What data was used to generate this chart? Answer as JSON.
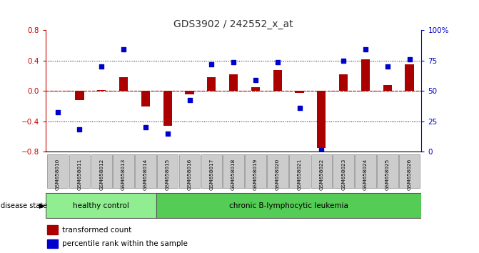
{
  "title": "GDS3902 / 242552_x_at",
  "samples": [
    "GSM658010",
    "GSM658011",
    "GSM658012",
    "GSM658013",
    "GSM658014",
    "GSM658015",
    "GSM658016",
    "GSM658017",
    "GSM658018",
    "GSM658019",
    "GSM658020",
    "GSM658021",
    "GSM658022",
    "GSM658023",
    "GSM658024",
    "GSM658025",
    "GSM658026"
  ],
  "red_values": [
    0.0,
    -0.12,
    0.01,
    0.18,
    -0.2,
    -0.46,
    -0.04,
    0.18,
    0.22,
    0.05,
    0.28,
    -0.02,
    -0.75,
    0.22,
    0.42,
    0.08,
    0.35
  ],
  "blue_values": [
    -0.28,
    -0.5,
    0.32,
    0.55,
    -0.48,
    -0.56,
    -0.12,
    0.35,
    0.38,
    0.15,
    0.38,
    -0.22,
    -0.78,
    0.4,
    0.55,
    0.32,
    0.42
  ],
  "healthy_count": 5,
  "disease_label_healthy": "healthy control",
  "disease_label_leukemia": "chronic B-lymphocytic leukemia",
  "disease_state_label": "disease state",
  "legend_red": "transformed count",
  "legend_blue": "percentile rank within the sample",
  "ylim": [
    -0.8,
    0.8
  ],
  "right_ylim": [
    0,
    100
  ],
  "right_yticks": [
    0,
    25,
    50,
    75,
    100
  ],
  "right_yticklabels": [
    "0",
    "25",
    "50",
    "75",
    "100%"
  ],
  "left_yticks": [
    -0.8,
    -0.4,
    0.0,
    0.4,
    0.8
  ],
  "dotted_lines": [
    -0.4,
    0.0,
    0.4
  ],
  "bar_color": "#aa0000",
  "dot_color": "#0000cc",
  "healthy_bg": "#90ee90",
  "leukemia_bg": "#55cc55",
  "tick_label_bg": "#cccccc",
  "plot_bg": "#ffffff",
  "title_color": "#333333",
  "left_tick_color": "#cc0000",
  "right_tick_color": "#0000cc"
}
